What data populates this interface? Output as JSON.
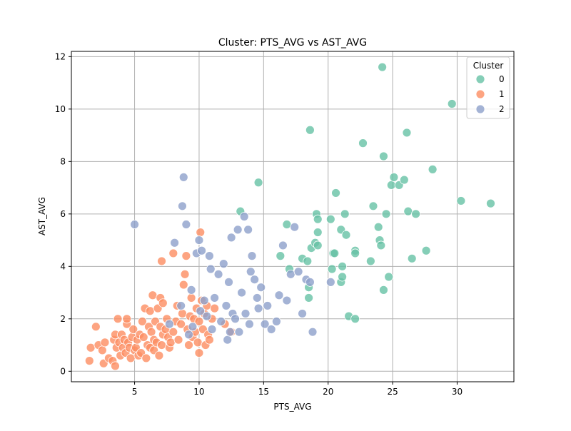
{
  "chart_data": {
    "type": "scatter",
    "title": "Cluster: PTS_AVG vs AST_AVG",
    "xlabel": "PTS_AVG",
    "ylabel": "AST_AVG",
    "xlim": [
      0.1,
      34.4
    ],
    "ylim": [
      -0.4,
      12.2
    ],
    "xticks": [
      5,
      10,
      15,
      20,
      25,
      30
    ],
    "yticks": [
      0,
      2,
      4,
      6,
      8,
      10,
      12
    ],
    "grid": true,
    "legend": {
      "title": "Cluster",
      "placement": "top-right"
    },
    "series": [
      {
        "name": "0",
        "color": "#66c2a5",
        "points": [
          [
            13.2,
            6.1
          ],
          [
            14.6,
            7.2
          ],
          [
            16.3,
            4.4
          ],
          [
            16.8,
            5.6
          ],
          [
            17.0,
            3.9
          ],
          [
            18.0,
            4.3
          ],
          [
            18.4,
            4.2
          ],
          [
            18.5,
            2.8
          ],
          [
            18.5,
            3.2
          ],
          [
            18.6,
            9.2
          ],
          [
            18.7,
            4.7
          ],
          [
            19.0,
            4.9
          ],
          [
            19.1,
            6.0
          ],
          [
            19.2,
            5.3
          ],
          [
            19.2,
            5.8
          ],
          [
            19.2,
            4.8
          ],
          [
            20.2,
            5.8
          ],
          [
            20.3,
            3.9
          ],
          [
            20.4,
            4.5
          ],
          [
            20.5,
            4.5
          ],
          [
            20.6,
            6.8
          ],
          [
            21.0,
            3.4
          ],
          [
            21.0,
            5.4
          ],
          [
            21.1,
            4.0
          ],
          [
            21.1,
            3.6
          ],
          [
            21.3,
            6.0
          ],
          [
            21.4,
            5.2
          ],
          [
            21.6,
            2.1
          ],
          [
            22.1,
            4.6
          ],
          [
            22.1,
            4.5
          ],
          [
            22.1,
            2.0
          ],
          [
            22.7,
            8.7
          ],
          [
            23.3,
            4.2
          ],
          [
            23.5,
            6.3
          ],
          [
            23.9,
            5.5
          ],
          [
            24.0,
            5.0
          ],
          [
            24.1,
            4.8
          ],
          [
            24.2,
            11.6
          ],
          [
            24.3,
            8.2
          ],
          [
            24.3,
            3.1
          ],
          [
            24.5,
            6.0
          ],
          [
            24.7,
            3.6
          ],
          [
            24.9,
            7.1
          ],
          [
            25.1,
            7.4
          ],
          [
            25.5,
            7.1
          ],
          [
            25.9,
            7.3
          ],
          [
            26.1,
            9.1
          ],
          [
            26.2,
            6.1
          ],
          [
            26.5,
            4.3
          ],
          [
            26.8,
            6.0
          ],
          [
            27.6,
            4.6
          ],
          [
            28.1,
            7.7
          ],
          [
            29.6,
            10.2
          ],
          [
            30.3,
            6.5
          ],
          [
            32.6,
            6.4
          ]
        ]
      },
      {
        "name": "1",
        "color": "#fc8d62",
        "points": [
          [
            1.5,
            0.4
          ],
          [
            1.6,
            0.9
          ],
          [
            2.0,
            1.7
          ],
          [
            2.2,
            1.0
          ],
          [
            2.5,
            0.8
          ],
          [
            2.6,
            0.3
          ],
          [
            2.7,
            1.1
          ],
          [
            3.0,
            0.5
          ],
          [
            3.3,
            0.4
          ],
          [
            3.4,
            1.2
          ],
          [
            3.5,
            1.4
          ],
          [
            3.5,
            0.2
          ],
          [
            3.6,
            0.9
          ],
          [
            3.7,
            2.0
          ],
          [
            3.8,
            1.1
          ],
          [
            3.9,
            0.6
          ],
          [
            4.0,
            1.4
          ],
          [
            4.1,
            0.9
          ],
          [
            4.2,
            1.2
          ],
          [
            4.3,
            0.7
          ],
          [
            4.4,
            1.8
          ],
          [
            4.4,
            2.0
          ],
          [
            4.5,
            1.1
          ],
          [
            4.6,
            0.9
          ],
          [
            4.7,
            0.5
          ],
          [
            4.8,
            1.3
          ],
          [
            4.9,
            1.6
          ],
          [
            5.0,
            0.8
          ],
          [
            5.1,
            0.9
          ],
          [
            5.2,
            1.2
          ],
          [
            5.3,
            0.6
          ],
          [
            5.4,
            1.4
          ],
          [
            5.5,
            0.7
          ],
          [
            5.6,
            1.9
          ],
          [
            5.7,
            1.3
          ],
          [
            5.8,
            2.4
          ],
          [
            5.9,
            0.5
          ],
          [
            6.0,
            1.0
          ],
          [
            6.1,
            1.7
          ],
          [
            6.2,
            0.9
          ],
          [
            6.2,
            2.3
          ],
          [
            6.3,
            1.5
          ],
          [
            6.4,
            2.9
          ],
          [
            6.5,
            1.2
          ],
          [
            6.5,
            0.8
          ],
          [
            6.6,
            1.9
          ],
          [
            6.7,
            1.1
          ],
          [
            6.8,
            2.4
          ],
          [
            6.9,
            0.6
          ],
          [
            7.0,
            1.7
          ],
          [
            7.0,
            2.8
          ],
          [
            7.1,
            4.2
          ],
          [
            7.1,
            1.0
          ],
          [
            7.2,
            1.4
          ],
          [
            7.2,
            2.6
          ],
          [
            7.4,
            1.6
          ],
          [
            7.5,
            2.0
          ],
          [
            7.6,
            1.3
          ],
          [
            7.7,
            0.9
          ],
          [
            7.8,
            1.1
          ],
          [
            8.0,
            4.5
          ],
          [
            8.0,
            1.5
          ],
          [
            8.2,
            1.9
          ],
          [
            8.3,
            2.5
          ],
          [
            8.4,
            1.2
          ],
          [
            8.6,
            1.8
          ],
          [
            8.7,
            2.2
          ],
          [
            8.8,
            3.3
          ],
          [
            8.9,
            3.7
          ],
          [
            9.0,
            4.4
          ],
          [
            9.1,
            1.6
          ],
          [
            9.2,
            1.0
          ],
          [
            9.3,
            2.1
          ],
          [
            9.4,
            2.8
          ],
          [
            9.5,
            1.3
          ],
          [
            9.6,
            2.0
          ],
          [
            9.7,
            1.5
          ],
          [
            9.8,
            2.4
          ],
          [
            9.9,
            1.1
          ],
          [
            10.0,
            0.7
          ],
          [
            10.0,
            1.9
          ],
          [
            10.1,
            5.3
          ],
          [
            10.2,
            2.7
          ],
          [
            10.3,
            1.6
          ],
          [
            10.4,
            2.2
          ],
          [
            10.5,
            1.0
          ],
          [
            10.6,
            2.5
          ],
          [
            10.7,
            1.4
          ],
          [
            10.8,
            1.2
          ],
          [
            11.0,
            2.0
          ],
          [
            11.2,
            2.4
          ],
          [
            12.0,
            1.8
          ],
          [
            12.5,
            1.5
          ]
        ]
      },
      {
        "name": "2",
        "color": "#8da0cb",
        "points": [
          [
            5.0,
            5.6
          ],
          [
            7.7,
            1.8
          ],
          [
            8.1,
            4.9
          ],
          [
            8.6,
            2.5
          ],
          [
            8.7,
            6.3
          ],
          [
            8.8,
            7.4
          ],
          [
            9.0,
            5.6
          ],
          [
            9.2,
            1.4
          ],
          [
            9.4,
            3.1
          ],
          [
            9.5,
            1.7
          ],
          [
            9.8,
            4.5
          ],
          [
            10.0,
            5.0
          ],
          [
            10.1,
            2.3
          ],
          [
            10.2,
            4.6
          ],
          [
            10.4,
            2.7
          ],
          [
            10.6,
            2.1
          ],
          [
            10.8,
            4.4
          ],
          [
            10.9,
            3.9
          ],
          [
            11.0,
            1.6
          ],
          [
            11.2,
            2.8
          ],
          [
            11.5,
            3.7
          ],
          [
            11.7,
            1.9
          ],
          [
            11.9,
            4.1
          ],
          [
            12.1,
            2.5
          ],
          [
            12.2,
            1.2
          ],
          [
            12.3,
            3.4
          ],
          [
            12.4,
            1.5
          ],
          [
            12.5,
            5.1
          ],
          [
            12.6,
            2.2
          ],
          [
            12.8,
            2.0
          ],
          [
            13.0,
            5.4
          ],
          [
            13.1,
            1.5
          ],
          [
            13.3,
            3.0
          ],
          [
            13.5,
            5.9
          ],
          [
            13.6,
            2.2
          ],
          [
            13.8,
            5.4
          ],
          [
            13.9,
            1.8
          ],
          [
            14.0,
            3.8
          ],
          [
            14.1,
            4.4
          ],
          [
            14.3,
            3.5
          ],
          [
            14.5,
            2.8
          ],
          [
            14.6,
            2.4
          ],
          [
            14.8,
            3.2
          ],
          [
            15.1,
            1.8
          ],
          [
            15.3,
            2.5
          ],
          [
            15.6,
            1.6
          ],
          [
            16.0,
            1.9
          ],
          [
            16.2,
            2.9
          ],
          [
            16.5,
            4.8
          ],
          [
            16.8,
            2.7
          ],
          [
            17.1,
            3.7
          ],
          [
            17.4,
            5.5
          ],
          [
            17.7,
            3.8
          ],
          [
            18.0,
            2.2
          ],
          [
            18.3,
            3.5
          ],
          [
            18.6,
            3.4
          ],
          [
            18.8,
            1.5
          ],
          [
            20.2,
            3.4
          ]
        ]
      }
    ]
  }
}
